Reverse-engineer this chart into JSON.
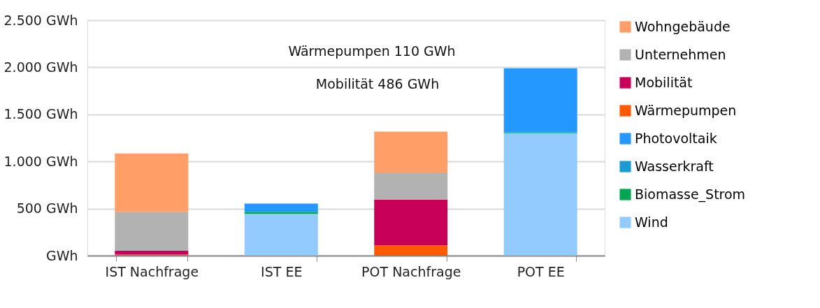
{
  "chart_data": {
    "type": "bar",
    "stacked": true,
    "categories": [
      "IST Nachfrage",
      "IST EE",
      "POT Nachfrage",
      "POT EE"
    ],
    "series": [
      {
        "name": "Wind",
        "color": "#93cbff",
        "values": [
          null,
          444,
          null,
          1298
        ]
      },
      {
        "name": "Biomasse_Strom",
        "color": "#00a651",
        "values": [
          null,
          19,
          null,
          5
        ]
      },
      {
        "name": "Wasserkraft",
        "color": "#1a9bd6",
        "values": [
          null,
          20,
          null,
          5
        ]
      },
      {
        "name": "Photovoltaik",
        "color": "#2598ff",
        "values": [
          null,
          69,
          null,
          682
        ]
      },
      {
        "name": "Wärmepumpen",
        "color": "#ff5a00",
        "values": [
          12,
          null,
          110,
          null
        ]
      },
      {
        "name": "Mobilität",
        "color": "#c8005a",
        "values": [
          42,
          null,
          486,
          null
        ]
      },
      {
        "name": "Unternehmen",
        "color": "#b2b2b2",
        "values": [
          412,
          null,
          286,
          null
        ]
      },
      {
        "name": "Wohngebäude",
        "color": "#ff9e66",
        "values": [
          619,
          null,
          434,
          null
        ]
      }
    ],
    "ylim": [
      0,
      2500
    ],
    "yticks": [
      {
        "value": 0,
        "label": "GWh"
      },
      {
        "value": 500,
        "label": "500 GWh"
      },
      {
        "value": 1000,
        "label": "1.000 GWh"
      },
      {
        "value": 1500,
        "label": "1.500 GWh"
      },
      {
        "value": 2000,
        "label": "2.000 GWh"
      },
      {
        "value": 2500,
        "label": "2.500 GWh"
      }
    ],
    "grid": "y",
    "legend": "right",
    "annotations": [
      "Wärmepumpen 110  GWh",
      "Mobilität 486 GWh"
    ]
  }
}
